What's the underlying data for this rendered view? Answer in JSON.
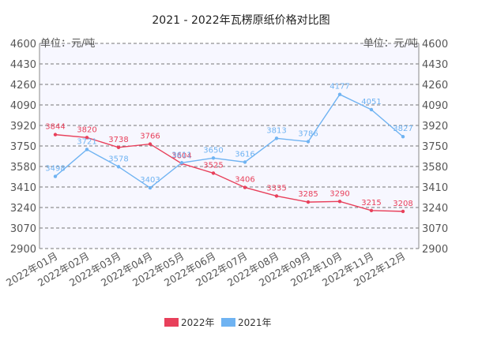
{
  "chart_data": {
    "type": "line",
    "title": "2021 - 2022年瓦楞原纸价格对比图",
    "unit_label": "单位：元/吨",
    "categories": [
      "2022年01月",
      "2022年02月",
      "2022年03月",
      "2022年04月",
      "2022年05月",
      "2022年06月",
      "2022年07月",
      "2022年08月",
      "2022年09月",
      "2022年10月",
      "2022年11月",
      "2022年12月"
    ],
    "ylim": [
      2900,
      4600
    ],
    "yticks": [
      2900,
      3070,
      3240,
      3410,
      3580,
      3750,
      3920,
      4090,
      4260,
      4430,
      4600
    ],
    "grid": true,
    "legend_position": "bottom",
    "series": [
      {
        "name": "2022年",
        "color": "#e8405b",
        "values": [
          3844,
          3820,
          3738,
          3766,
          3604,
          3525,
          3406,
          3335,
          3285,
          3290,
          3215,
          3208
        ]
      },
      {
        "name": "2021年",
        "color": "#6fb3f2",
        "values": [
          3498,
          3721,
          3578,
          3403,
          3611,
          3650,
          3616,
          3813,
          3786,
          4177,
          4051,
          3827
        ]
      }
    ]
  }
}
